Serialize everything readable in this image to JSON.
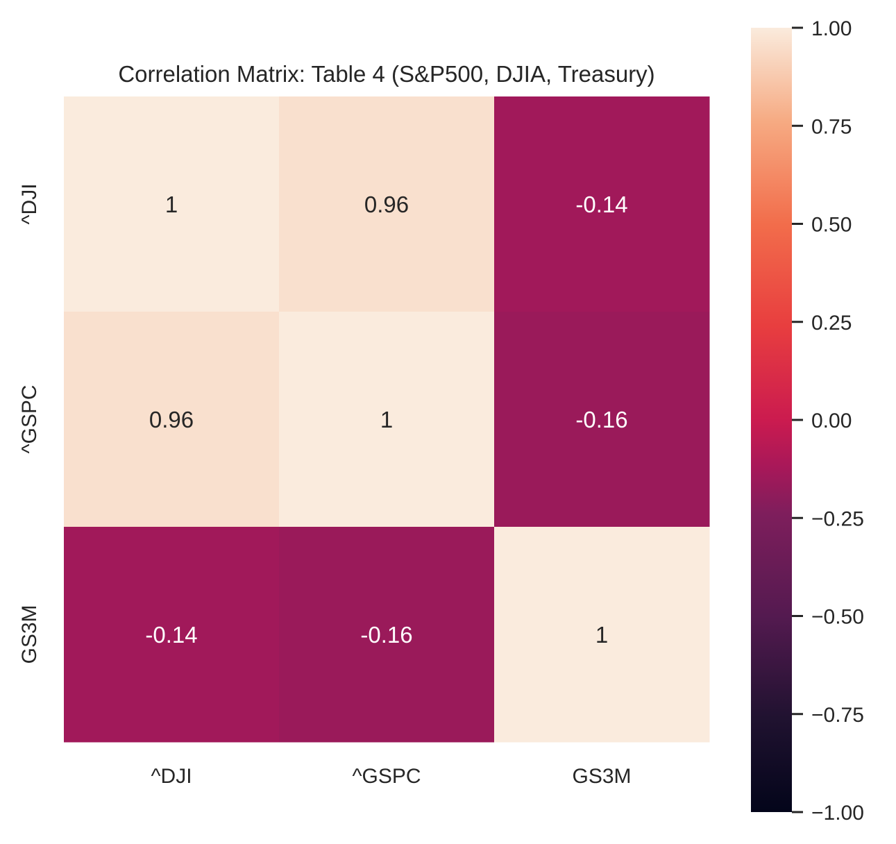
{
  "chart_data": {
    "type": "heatmap",
    "title": "Correlation Matrix: Table 4 (S&P500, DJIA, Treasury)",
    "x_categories": [
      "^DJI",
      "^GSPC",
      "GS3M"
    ],
    "y_categories": [
      "^DJI",
      "^GSPC",
      "GS3M"
    ],
    "values": [
      [
        1,
        0.96,
        -0.14
      ],
      [
        0.96,
        1,
        -0.16
      ],
      [
        -0.14,
        -0.16,
        1
      ]
    ],
    "annotations": [
      [
        "1",
        "0.96",
        "-0.14"
      ],
      [
        "0.96",
        "1",
        "-0.16"
      ],
      [
        "-0.14",
        "-0.16",
        "1"
      ]
    ],
    "colorbar": {
      "vmin": -1.0,
      "vmax": 1.0,
      "ticks": [
        1.0,
        0.75,
        0.5,
        0.25,
        0.0,
        -0.25,
        -0.5,
        -0.75,
        -1.0
      ],
      "tick_labels": [
        "1.00",
        "0.75",
        "0.50",
        "0.25",
        "0.00",
        "−0.25",
        "−0.50",
        "−0.75",
        "−1.00"
      ],
      "colormap": "rocket"
    },
    "grid": false,
    "xlabel": "",
    "ylabel": ""
  }
}
